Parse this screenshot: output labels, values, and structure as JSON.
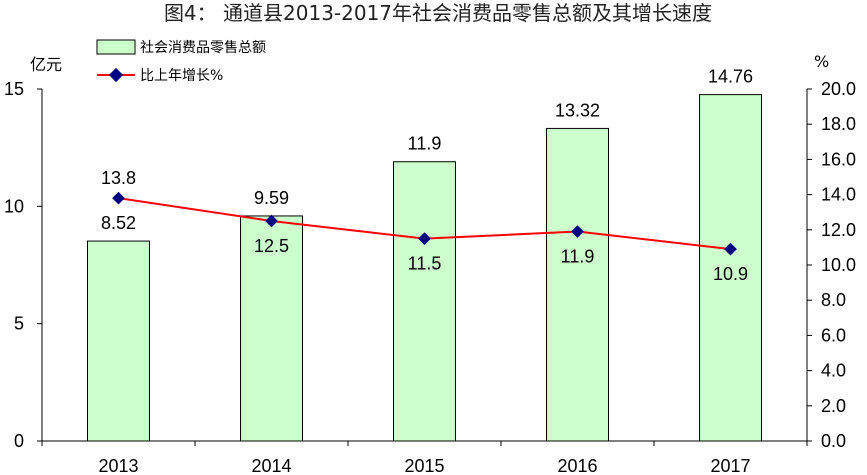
{
  "chart_data": {
    "type": "bar+line",
    "title": "图4：  通道县2013-2017年社会消费品零售总额及其增长速度",
    "categories": [
      "2013",
      "2014",
      "2015",
      "2016",
      "2017"
    ],
    "series": [
      {
        "name": "社会消费品零售总额",
        "type": "bar",
        "axis": "left",
        "values": [
          8.52,
          9.59,
          11.9,
          13.32,
          14.76
        ],
        "labels": [
          "8.52",
          "9.59",
          "11.9",
          "13.32",
          "14.76"
        ],
        "color": "#ccffcc"
      },
      {
        "name": "比上年增长%",
        "type": "line",
        "axis": "right",
        "values": [
          13.8,
          12.5,
          11.5,
          11.9,
          10.9
        ],
        "labels": [
          "13.8",
          "12.5",
          "11.5",
          "11.9",
          "10.9"
        ],
        "color": "#ff0000",
        "marker_color": "#000080"
      }
    ],
    "y_left": {
      "unit": "亿元",
      "ylim": [
        0,
        15
      ],
      "ticks": [
        "0",
        "5",
        "10",
        "15"
      ]
    },
    "y_right": {
      "unit": "%",
      "ylim": [
        0,
        20
      ],
      "ticks": [
        "0.0",
        "2.0",
        "4.0",
        "6.0",
        "8.0",
        "10.0",
        "12.0",
        "14.0",
        "16.0",
        "18.0",
        "20.0"
      ]
    },
    "legend": "top-left",
    "grid": false
  }
}
